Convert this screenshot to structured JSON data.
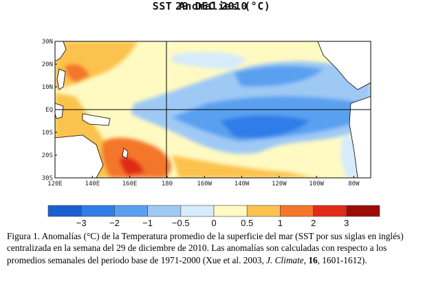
{
  "title": "SST Anomalies (°C)",
  "date": "29 DEC 2010",
  "map": {
    "lat_labels": [
      "30N",
      "20N",
      "10N",
      "EQ",
      "10S",
      "20S",
      "30S"
    ],
    "lon_labels": [
      "120E",
      "140E",
      "160E",
      "180",
      "160W",
      "140W",
      "120W",
      "100W",
      "80W"
    ],
    "lat_range": [
      -30,
      30
    ],
    "lon_range_east": [
      120,
      290
    ],
    "gridlines": "equator and dateline",
    "patterns": [
      {
        "name": "la-nina-cold-tongue",
        "description_level": "cold",
        "value": -1.5
      },
      {
        "name": "warm-horseshoe-west",
        "value": 1.0
      }
    ]
  },
  "colorbar": {
    "tick_labels": [
      "−3",
      "−2",
      "−1",
      "−0.5",
      "0",
      "0.5",
      "1",
      "2",
      "3"
    ],
    "colors": [
      "#1a5fd0",
      "#2f7de8",
      "#5aa0f0",
      "#9fc9f5",
      "#d6ecfb",
      "#fffac2",
      "#fbc24e",
      "#f4762a",
      "#e12a18",
      "#9d0b08"
    ]
  },
  "caption": {
    "part1": "Figura 1. Anomalías (°C) de la Temperatura promedio de la superficie del mar (SST por sus siglas en inglés) centralizada  en la semana del  29 de diciembre de 2010. Las anomalías son calculadas con respecto a los promedios semanales  del periodo base de 1971-2000 (Xue et al. 2003, ",
    "journal": "J. Climate",
    "comma": ", ",
    "volume": "16",
    "pages": ", 1601-1612)."
  }
}
